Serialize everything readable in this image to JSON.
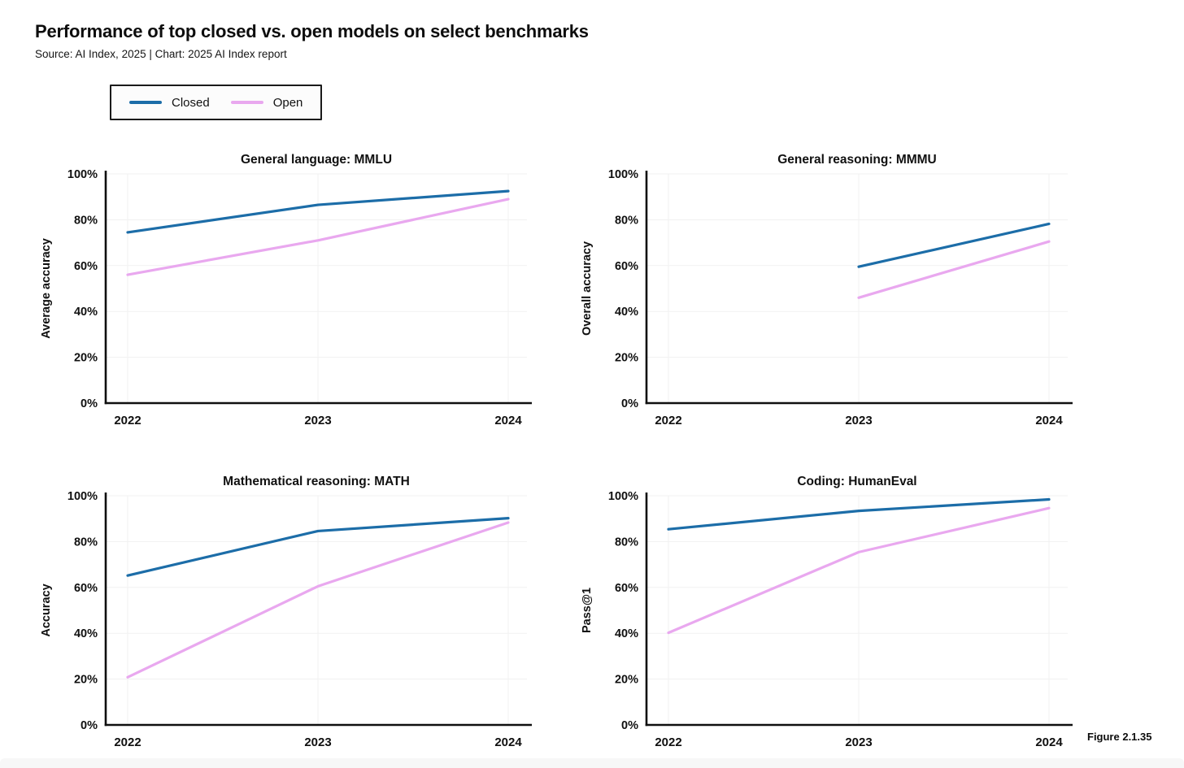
{
  "header": {
    "title": "Performance of top closed vs. open models on select benchmarks",
    "source": "Source: AI Index, 2025 | Chart: 2025 AI Index report"
  },
  "legend": {
    "items": [
      {
        "label": "Closed",
        "color_key": "closed"
      },
      {
        "label": "Open",
        "color_key": "open"
      }
    ]
  },
  "colors": {
    "closed": "#1c6da8",
    "open": "#e9a8ef",
    "axis": "#0f0f0f",
    "grid": "#f1f1f1",
    "band": "#f7f7f7"
  },
  "figure_label": "Figure 2.1.35",
  "chart_data": [
    {
      "type": "line",
      "title": "General language: MMLU",
      "ylabel": "Average accuracy",
      "xlabel": "",
      "x": [
        "2022",
        "2023",
        "2024"
      ],
      "ylim": [
        0,
        100
      ],
      "yticks": [
        "0%",
        "20%",
        "40%",
        "60%",
        "80%",
        "100%"
      ],
      "grid": true,
      "legend_position": "top-left-shared",
      "series": [
        {
          "name": "Closed",
          "color_key": "closed",
          "values": [
            74.5,
            86.5,
            92.5
          ]
        },
        {
          "name": "Open",
          "color_key": "open",
          "values": [
            56,
            71,
            89
          ]
        }
      ]
    },
    {
      "type": "line",
      "title": "General reasoning: MMMU",
      "ylabel": "Overall accuracy",
      "xlabel": "",
      "x": [
        "2022",
        "2023",
        "2024"
      ],
      "ylim": [
        0,
        100
      ],
      "yticks": [
        "0%",
        "20%",
        "40%",
        "60%",
        "80%",
        "100%"
      ],
      "grid": true,
      "legend_position": "top-left-shared",
      "series": [
        {
          "name": "Closed",
          "color_key": "closed",
          "values": [
            null,
            59.5,
            78.2
          ]
        },
        {
          "name": "Open",
          "color_key": "open",
          "values": [
            null,
            46,
            70.5
          ]
        }
      ]
    },
    {
      "type": "line",
      "title": "Mathematical reasoning: MATH",
      "ylabel": "Accuracy",
      "xlabel": "",
      "x": [
        "2022",
        "2023",
        "2024"
      ],
      "ylim": [
        0,
        100
      ],
      "yticks": [
        "0%",
        "20%",
        "40%",
        "60%",
        "80%",
        "100%"
      ],
      "grid": true,
      "legend_position": "top-left-shared",
      "series": [
        {
          "name": "Closed",
          "color_key": "closed",
          "values": [
            65.2,
            84.6,
            90.2
          ]
        },
        {
          "name": "Open",
          "color_key": "open",
          "values": [
            20.8,
            60.5,
            88.3
          ]
        }
      ]
    },
    {
      "type": "line",
      "title": "Coding: HumanEval",
      "ylabel": "Pass@1",
      "xlabel": "",
      "x": [
        "2022",
        "2023",
        "2024"
      ],
      "ylim": [
        0,
        100
      ],
      "yticks": [
        "0%",
        "20%",
        "40%",
        "60%",
        "80%",
        "100%"
      ],
      "grid": true,
      "legend_position": "top-left-shared",
      "series": [
        {
          "name": "Closed",
          "color_key": "closed",
          "values": [
            85.4,
            93.4,
            98.4
          ]
        },
        {
          "name": "Open",
          "color_key": "open",
          "values": [
            40.2,
            75.4,
            94.6
          ]
        }
      ]
    }
  ]
}
